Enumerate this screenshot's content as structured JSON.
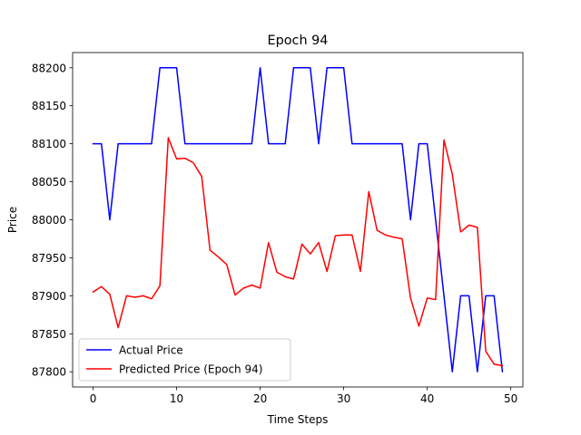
{
  "chart_data": {
    "type": "line",
    "title": "Epoch 94",
    "xlabel": "Time Steps",
    "ylabel": "Price",
    "xlim": [
      -2.45,
      51.45
    ],
    "ylim": [
      87780,
      88220
    ],
    "xticks": [
      0,
      10,
      20,
      30,
      40,
      50
    ],
    "yticks": [
      87800,
      87850,
      87900,
      87950,
      88000,
      88050,
      88100,
      88150,
      88200
    ],
    "grid": false,
    "legend_position": "lower-left",
    "x": [
      0,
      1,
      2,
      3,
      4,
      5,
      6,
      7,
      8,
      9,
      10,
      11,
      12,
      13,
      14,
      15,
      16,
      17,
      18,
      19,
      20,
      21,
      22,
      23,
      24,
      25,
      26,
      27,
      28,
      29,
      30,
      31,
      32,
      33,
      34,
      35,
      36,
      37,
      38,
      39,
      40,
      41,
      42,
      43,
      44,
      45,
      46,
      47,
      48,
      49
    ],
    "series": [
      {
        "name": "Actual Price",
        "color": "#0000ff",
        "values": [
          88100,
          88100,
          88000,
          88100,
          88100,
          88100,
          88100,
          88100,
          88200,
          88200,
          88200,
          88100,
          88100,
          88100,
          88100,
          88100,
          88100,
          88100,
          88100,
          88100,
          88200,
          88100,
          88100,
          88100,
          88200,
          88200,
          88200,
          88100,
          88200,
          88200,
          88200,
          88100,
          88100,
          88100,
          88100,
          88100,
          88100,
          88100,
          88000,
          88100,
          88100,
          88000,
          87900,
          87800,
          87900,
          87900,
          87800,
          87900,
          87900,
          87800
        ]
      },
      {
        "name": "Predicted Price (Epoch 94)",
        "color": "#ff0000",
        "values": [
          87905,
          87912,
          87902,
          87858,
          87900,
          87898,
          87900,
          87896,
          87913,
          88108,
          88080,
          88081,
          88075,
          88057,
          87960,
          87951,
          87941,
          87901,
          87910,
          87914,
          87910,
          87970,
          87931,
          87925,
          87922,
          87968,
          87955,
          87970,
          87932,
          87979,
          87980,
          87980,
          87932,
          88037,
          87986,
          87980,
          87977,
          87975,
          87897,
          87860,
          87897,
          87895,
          88105,
          88060,
          87984,
          87993,
          87990,
          87827,
          87810,
          87808
        ]
      }
    ]
  }
}
